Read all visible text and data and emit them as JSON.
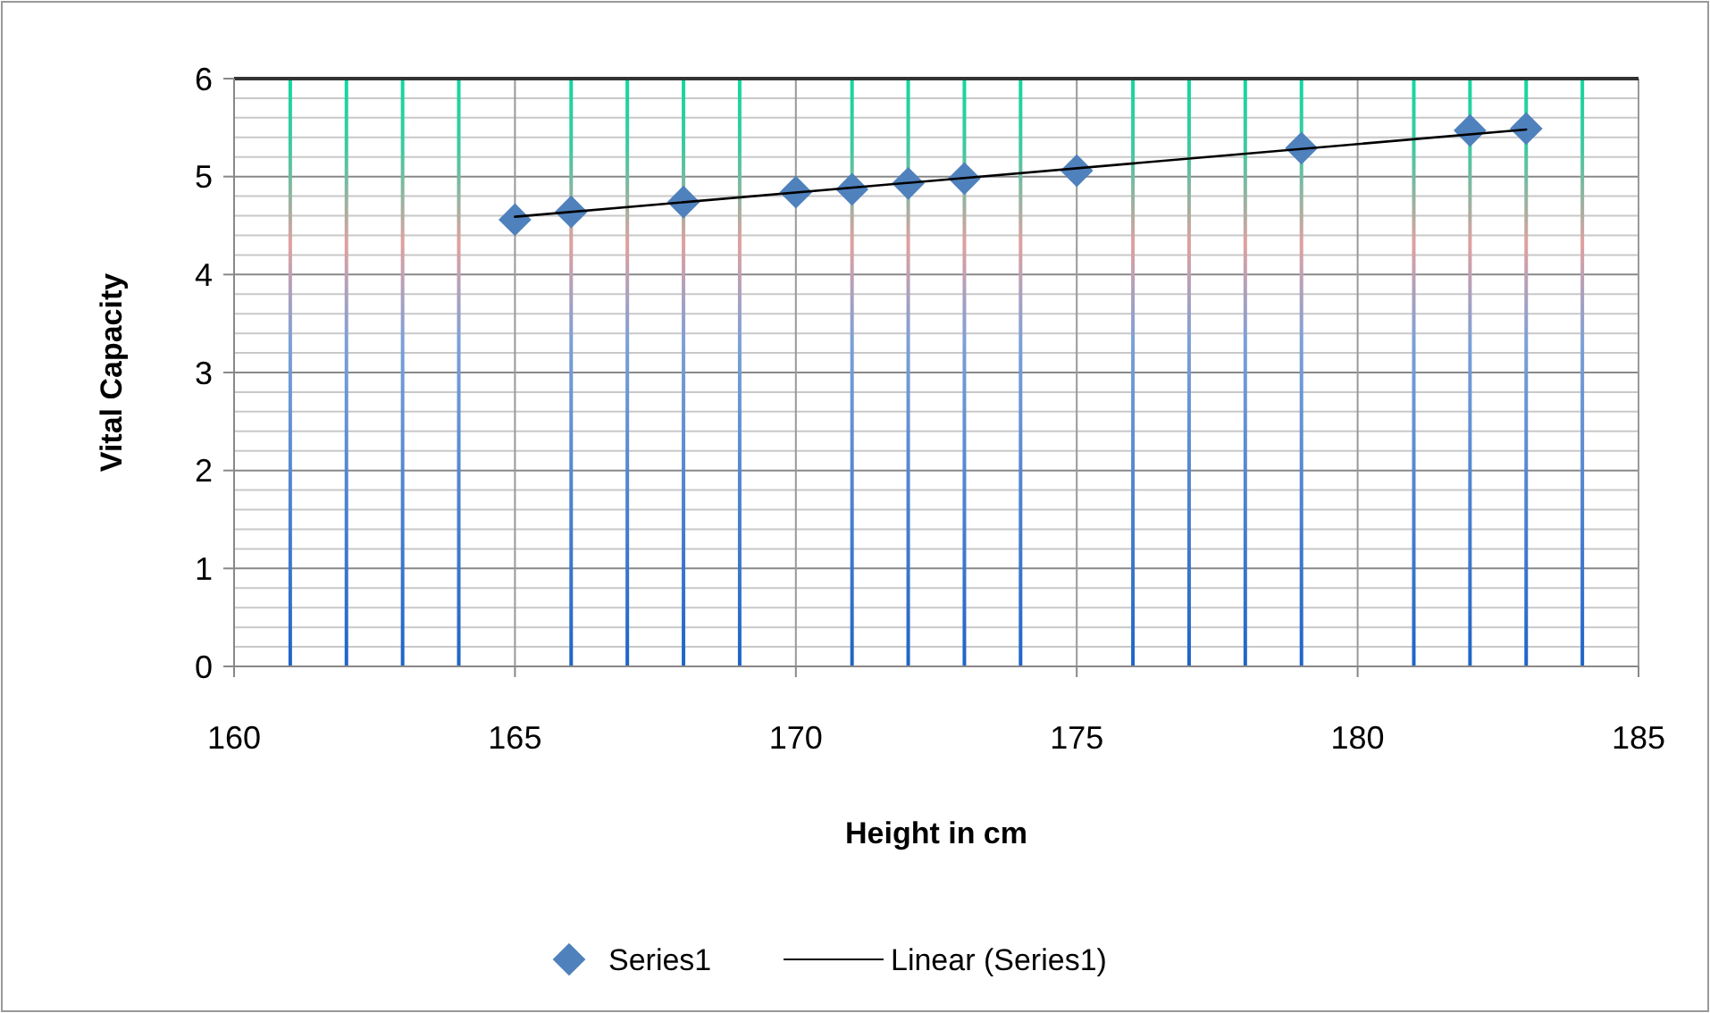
{
  "chart_data": {
    "type": "scatter",
    "xlabel": "Height in cm",
    "ylabel": "Vital Capacity",
    "xlim": [
      160,
      185
    ],
    "xticks": [
      160,
      {
        "value": 161,
        "label": null
      },
      {
        "value": 162,
        "label": null
      },
      {
        "value": 163,
        "label": null
      },
      {
        "value": 164,
        "label": null
      },
      165,
      {
        "value": 166,
        "label": null
      },
      {
        "value": 167,
        "label": null
      },
      {
        "value": 168,
        "label": null
      },
      {
        "value": 169,
        "label": null
      },
      170,
      {
        "value": 171,
        "label": null
      },
      {
        "value": 172,
        "label": null
      },
      {
        "value": 173,
        "label": null
      },
      {
        "value": 174,
        "label": null
      },
      175,
      {
        "value": 176,
        "label": null
      },
      {
        "value": 177,
        "label": null
      },
      {
        "value": 178,
        "label": null
      },
      {
        "value": 179,
        "label": null
      },
      180,
      {
        "value": 181,
        "label": null
      },
      {
        "value": 182,
        "label": null
      },
      {
        "value": 183,
        "label": null
      },
      {
        "value": 184,
        "label": null
      },
      185
    ],
    "ylim": [
      0,
      6
    ],
    "yticks": [
      0,
      1,
      2,
      3,
      4,
      5,
      6
    ],
    "grid": true,
    "legend": "bottom",
    "marker": "diamond",
    "series": [
      {
        "name": "Series1",
        "color": "#4f81bd",
        "x": [
          165,
          166,
          168,
          170,
          171,
          172,
          173,
          175,
          179,
          182,
          183
        ],
        "values": [
          4.56,
          4.64,
          4.74,
          4.84,
          4.87,
          4.93,
          4.98,
          5.06,
          5.29,
          5.47,
          5.49
        ]
      },
      {
        "name": "Linear (Series1)",
        "type": "line",
        "color": "#000000",
        "line_style": "solid",
        "marker": "none",
        "x": [
          165,
          183
        ],
        "values": [
          4.59,
          5.48
        ]
      }
    ]
  }
}
